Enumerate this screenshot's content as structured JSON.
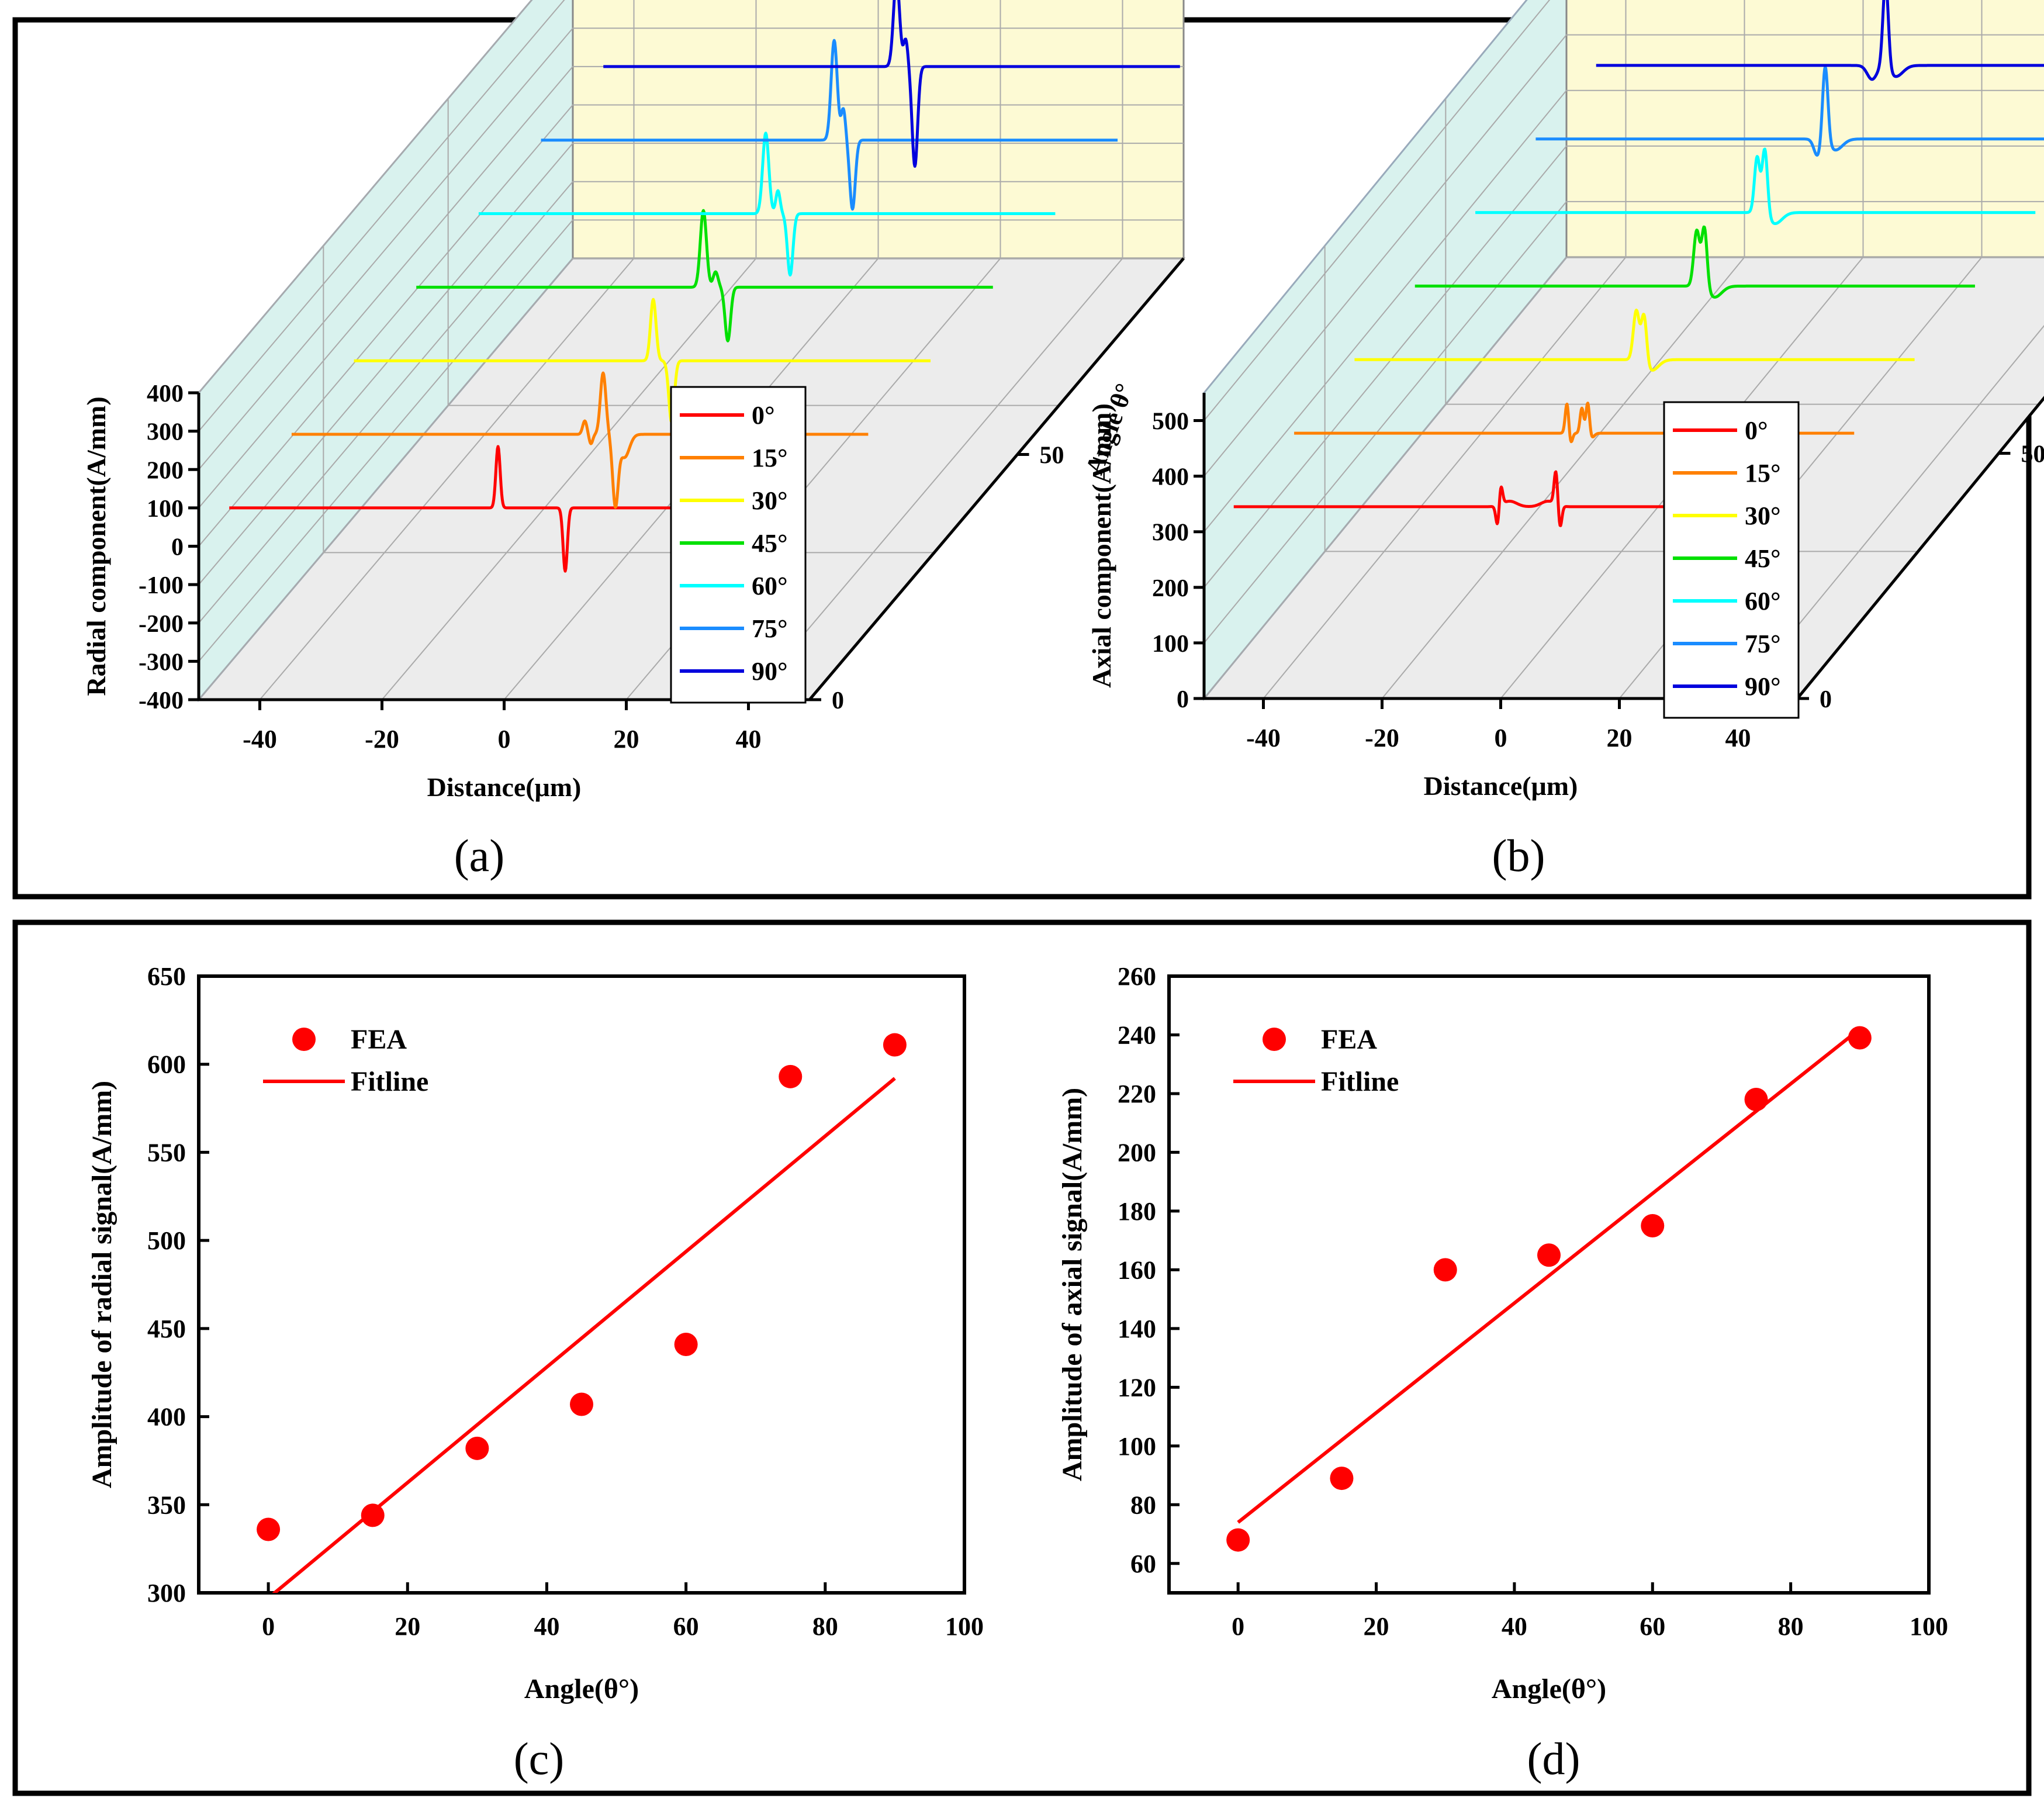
{
  "panels": {
    "a": {
      "caption": "(a)"
    },
    "b": {
      "caption": "(b)"
    },
    "c": {
      "caption": "(c)"
    },
    "d": {
      "caption": "(d)"
    }
  },
  "chart_data": [
    {
      "id": "a",
      "type": "line",
      "subtype": "3d-waterfall",
      "xlabel": "Distance(μm)",
      "ylabel": "Radial component(A/mm)",
      "zlabel": "Angle θ°",
      "x_ticks": [
        -40,
        -20,
        0,
        20,
        40
      ],
      "y_ticks": [
        400,
        300,
        200,
        100,
        0,
        -100,
        -200,
        -300,
        -400
      ],
      "z_ticks": [
        0,
        50
      ],
      "xlim": [
        -50,
        50
      ],
      "ylim": [
        -400,
        400
      ],
      "zlim": [
        0,
        90
      ],
      "legend_position": "inside-right",
      "series": [
        {
          "name": "0°",
          "color": "#ff0000",
          "angle": 0,
          "baseline": 100,
          "peaks": [
            {
              "x": -1,
              "amp": 160,
              "w": 0.35
            },
            {
              "x": 10,
              "amp": -165,
              "w": 0.35
            }
          ]
        },
        {
          "name": "15°",
          "color": "#ff8000",
          "angle": 15,
          "baseline": 100,
          "peaks": [
            {
              "x": 3,
              "amp": 35,
              "w": 0.35
            },
            {
              "x": 4,
              "amp": -25,
              "w": 0.3
            },
            {
              "x": 6,
              "amp": 160,
              "w": 0.45
            },
            {
              "x": 8,
              "amp": -180,
              "w": 0.45
            },
            {
              "x": 9.5,
              "amp": -60,
              "w": 0.8
            }
          ]
        },
        {
          "name": "30°",
          "color": "#ffff00",
          "angle": 30,
          "baseline": 100,
          "peaks": [
            {
              "x": 4,
              "amp": 160,
              "w": 0.45
            },
            {
              "x": 7,
              "amp": -160,
              "w": 0.45
            }
          ]
        },
        {
          "name": "45°",
          "color": "#00e000",
          "angle": 45,
          "baseline": 100,
          "peaks": [
            {
              "x": 2,
              "amp": 200,
              "w": 0.5
            },
            {
              "x": 4,
              "amp": 40,
              "w": 0.4
            },
            {
              "x": 6,
              "amp": -140,
              "w": 0.45
            }
          ]
        },
        {
          "name": "60°",
          "color": "#00ffff",
          "angle": 60,
          "baseline": 100,
          "peaks": [
            {
              "x": 2,
              "amp": 210,
              "w": 0.5
            },
            {
              "x": 4,
              "amp": 60,
              "w": 0.35
            },
            {
              "x": 6,
              "amp": -160,
              "w": 0.45
            }
          ]
        },
        {
          "name": "75°",
          "color": "#1a8cff",
          "angle": 75,
          "baseline": 100,
          "peaks": [
            {
              "x": 3,
              "amp": 260,
              "w": 0.5
            },
            {
              "x": 4.5,
              "amp": 80,
              "w": 0.35
            },
            {
              "x": 6,
              "amp": -180,
              "w": 0.45
            }
          ]
        },
        {
          "name": "90°",
          "color": "#0000dd",
          "angle": 90,
          "baseline": 100,
          "peaks": [
            {
              "x": 3,
              "amp": 230,
              "w": 0.5
            },
            {
              "x": 4.5,
              "amp": 70,
              "w": 0.35
            },
            {
              "x": 6,
              "amp": -260,
              "w": 0.45
            }
          ]
        }
      ]
    },
    {
      "id": "b",
      "type": "line",
      "subtype": "3d-waterfall",
      "xlabel": "Distance(μm)",
      "ylabel": "Axial component(A/mm)",
      "zlabel": "Angle θ°",
      "x_ticks": [
        -40,
        -20,
        0,
        20,
        40
      ],
      "y_ticks": [
        500,
        400,
        300,
        200,
        100,
        0
      ],
      "z_ticks": [
        0,
        50
      ],
      "xlim": [
        -50,
        50
      ],
      "ylim": [
        0,
        550
      ],
      "zlim": [
        0,
        90
      ],
      "legend_position": "inside-right",
      "series": [
        {
          "name": "0°",
          "color": "#ff0000",
          "angle": 0,
          "baseline": 345,
          "peaks": [
            {
              "x": -0.5,
              "amp": -40,
              "w": 0.3
            },
            {
              "x": 0,
              "amp": 38,
              "w": 0.3
            },
            {
              "x": 1.5,
              "amp": 10,
              "w": 1.2
            },
            {
              "x": 8,
              "amp": 10,
              "w": 1.2
            },
            {
              "x": 9.3,
              "amp": 60,
              "w": 0.3
            },
            {
              "x": 10,
              "amp": -40,
              "w": 0.3
            }
          ]
        },
        {
          "name": "15°",
          "color": "#ff8000",
          "angle": 15,
          "baseline": 345,
          "peaks": [
            {
              "x": 1,
              "amp": 55,
              "w": 0.3
            },
            {
              "x": 1.6,
              "amp": -20,
              "w": 0.3
            },
            {
              "x": 3.5,
              "amp": 45,
              "w": 0.3
            },
            {
              "x": 4.5,
              "amp": 60,
              "w": 0.3
            },
            {
              "x": 5,
              "amp": -10,
              "w": 0.5
            }
          ]
        },
        {
          "name": "30°",
          "color": "#ffff00",
          "angle": 30,
          "baseline": 345,
          "peaks": [
            {
              "x": 2.5,
              "amp": 90,
              "w": 0.5
            },
            {
              "x": 3.8,
              "amp": 90,
              "w": 0.45
            },
            {
              "x": 5,
              "amp": -20,
              "w": 1.2
            }
          ]
        },
        {
          "name": "45°",
          "color": "#00e000",
          "angle": 45,
          "baseline": 345,
          "peaks": [
            {
              "x": 2.5,
              "amp": 100,
              "w": 0.5
            },
            {
              "x": 3.8,
              "amp": 110,
              "w": 0.45
            },
            {
              "x": 5.5,
              "amp": -20,
              "w": 1.2
            }
          ]
        },
        {
          "name": "60°",
          "color": "#00ffff",
          "angle": 60,
          "baseline": 345,
          "peaks": [
            {
              "x": 2.5,
              "amp": 100,
              "w": 0.45
            },
            {
              "x": 3.8,
              "amp": 120,
              "w": 0.45
            },
            {
              "x": 5.5,
              "amp": -20,
              "w": 1.2
            }
          ]
        },
        {
          "name": "75°",
          "color": "#1a8cff",
          "angle": 75,
          "baseline": 345,
          "peaks": [
            {
              "x": 2.5,
              "amp": -30,
              "w": 0.6
            },
            {
              "x": 3.8,
              "amp": 140,
              "w": 0.45
            },
            {
              "x": 5.5,
              "amp": -20,
              "w": 1.2
            }
          ]
        },
        {
          "name": "90°",
          "color": "#0000dd",
          "angle": 90,
          "baseline": 345,
          "peaks": [
            {
              "x": 1.5,
              "amp": -25,
              "w": 0.8
            },
            {
              "x": 3.8,
              "amp": 160,
              "w": 0.45
            },
            {
              "x": 5.5,
              "amp": -20,
              "w": 1.2
            }
          ]
        }
      ]
    },
    {
      "id": "c",
      "type": "scatter",
      "xlabel": "Angle(θ°)",
      "ylabel": "Amplitude of radial signal(A/mm)",
      "xlim": [
        -10,
        100
      ],
      "ylim": [
        300,
        650
      ],
      "x_ticks": [
        0,
        20,
        40,
        60,
        80,
        100
      ],
      "y_ticks": [
        300,
        350,
        400,
        450,
        500,
        550,
        600,
        650
      ],
      "legend_position": "top-left",
      "series": [
        {
          "name": "FEA",
          "kind": "scatter",
          "color": "#ff0000",
          "x": [
            0,
            15,
            30,
            45,
            60,
            75,
            90
          ],
          "y": [
            336,
            344,
            382,
            407,
            441,
            593,
            611
          ]
        },
        {
          "name": "Fitline",
          "kind": "line",
          "color": "#ff0000",
          "x": [
            0,
            90
          ],
          "y": [
            297,
            592
          ]
        }
      ]
    },
    {
      "id": "d",
      "type": "scatter",
      "xlabel": "Angle(θ°)",
      "ylabel": "Amplitude of axial signal(A/mm)",
      "xlim": [
        -10,
        100
      ],
      "ylim": [
        50,
        260
      ],
      "x_ticks": [
        0,
        20,
        40,
        60,
        80,
        100
      ],
      "y_ticks": [
        60,
        80,
        100,
        120,
        140,
        160,
        180,
        200,
        220,
        240,
        260
      ],
      "legend_position": "top-left",
      "series": [
        {
          "name": "FEA",
          "kind": "scatter",
          "color": "#ff0000",
          "x": [
            0,
            15,
            30,
            45,
            60,
            75,
            90
          ],
          "y": [
            68,
            89,
            160,
            165,
            175,
            218,
            239
          ]
        },
        {
          "name": "Fitline",
          "kind": "line",
          "color": "#ff0000",
          "x": [
            0,
            90
          ],
          "y": [
            74,
            242
          ]
        }
      ]
    }
  ]
}
